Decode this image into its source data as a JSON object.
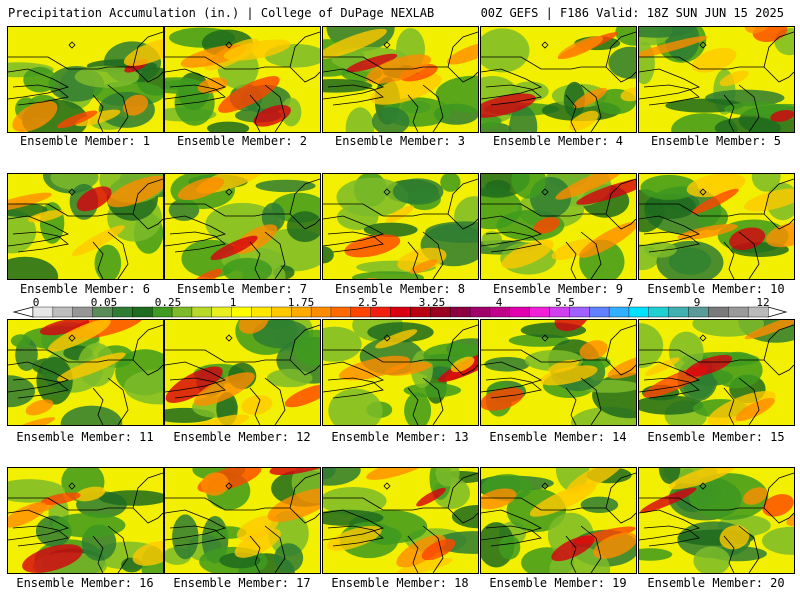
{
  "header": {
    "title": "Precipitation Accumulation (in.) | College of DuPage NEXLAB",
    "valid": "00Z GEFS | F186 Valid: 18Z SUN JUN 15 2025"
  },
  "members": [
    "Ensemble Member: 1",
    "Ensemble Member: 2",
    "Ensemble Member: 3",
    "Ensemble Member: 4",
    "Ensemble Member: 5",
    "Ensemble Member: 6",
    "Ensemble Member: 7",
    "Ensemble Member: 8",
    "Ensemble Member: 9",
    "Ensemble Member: 10",
    "Ensemble Member: 11",
    "Ensemble Member: 12",
    "Ensemble Member: 13",
    "Ensemble Member: 14",
    "Ensemble Member: 15",
    "Ensemble Member: 16",
    "Ensemble Member: 17",
    "Ensemble Member: 18",
    "Ensemble Member: 19",
    "Ensemble Member: 20"
  ],
  "colorbar": {
    "labels": [
      "0",
      "0.05",
      "0.25",
      "1",
      "1.75",
      "2.5",
      "3.25",
      "4",
      "5.5",
      "7",
      "9",
      "12"
    ],
    "colors": [
      "#e6e6e6",
      "#bdbdbd",
      "#969696",
      "#5a8c5a",
      "#2e7d32",
      "#1f6b1f",
      "#3f9b1f",
      "#7dbb2a",
      "#b9d92a",
      "#e8f020",
      "#ffff00",
      "#ffe600",
      "#ffc800",
      "#ffaa00",
      "#ff8c00",
      "#ff6a00",
      "#ff4500",
      "#f02010",
      "#d70010",
      "#b80010",
      "#9a0020",
      "#8a0040",
      "#a0006a",
      "#c0008a",
      "#e000b0",
      "#f020d8",
      "#d040f0",
      "#a060ff",
      "#6080ff",
      "#30b0ff",
      "#00e0ff",
      "#20d0d0",
      "#40b0b0",
      "#5a9a9a",
      "#7a7a7a",
      "#9a9a9a",
      "#bababa"
    ]
  }
}
